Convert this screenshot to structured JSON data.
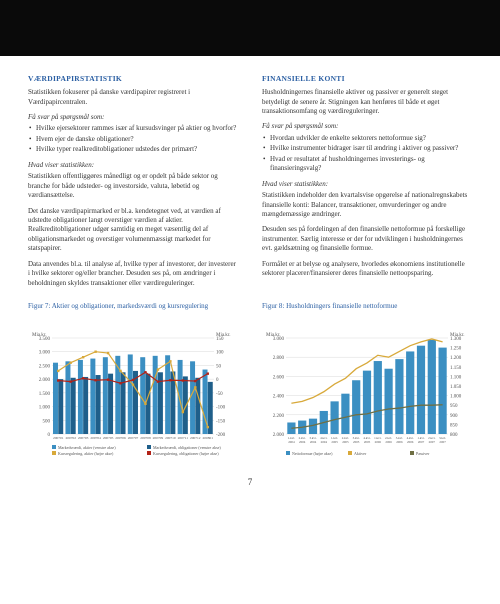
{
  "left": {
    "title": "VÆRDIPAPIRSTATISTIK",
    "intro": "Statistikken fokuserer på danske værdipapirer registreret i Værdipapircentralen.",
    "leadQ": "Få svar på spørgsmål som:",
    "bullets": [
      "Hvilke ejersektorer rammes især af kursudsvinger på aktier og hvorfor?",
      "Hvem ejer de danske obligationer?",
      "Hvilke typer realkreditobligationer udstedes der primært?"
    ],
    "subH": "Hvad viser statistikken:",
    "p1": "Statistikken offentliggøres månedligt og er opdelt på både sektor og branche for både udsteder- og investorside, valuta, løbetid og værdiansættelse.",
    "p2": "Det danske værdipapirmarked er bl.a. kendetegnet ved, at værdien af udstedte obligationer langt overstiger værdien af aktier. Realkreditobligationer udgør samtidig en meget væsentlig del af obligationsmarkedet og overstiger volumenmæssigt markedet for statspapirer.",
    "p3": "Data anvendes bl.a. til analyse af, hvilke typer af investorer, der investerer i hvilke sektorer og/eller brancher. Desuden ses på, om ændringer i beholdningen skyldes transaktioner eller værdireguleringer."
  },
  "right": {
    "title": "FINANSIELLE KONTI",
    "intro": "Husholdningernes finansielle aktiver og passiver er generelt steget betydeligt de senere år. Stigningen kan henføres til både et øget transaktionsomfang og værdireguleringer.",
    "leadQ": "Få svar på spørgsmål som:",
    "bullets": [
      "Hvordan udvikler de enkelte sektorers nettoformue sig?",
      "Hvilke instrumenter bidrager især til ændring i aktiver og passiver?",
      "Hvad er resultatet af husholdningernes investerings- og finansieringsvalg?"
    ],
    "subH": "Hvad viser statistikken:",
    "p1": "Statistikken indeholder den kvartalsvise opgørelse af nationalregnskabets finansielle konti: Balancer, transaktioner, omvurderinger og andre mængdemæssige ændringer.",
    "p2": "Desuden ses på fordelingen af den finansielle nettoformue på forskellige instrumenter. Særlig interesse er der for udviklingen i husholdningernes evt. gældsætning og finansielle formue.",
    "p3": "Formålet er at belyse og analysere, hvorledes økonomiens institutionelle sektorer placerer/finansierer deres finansielle nettoopsparing."
  },
  "fig7": {
    "no": "Figur 7:",
    "title": "Aktier og obligationer, markedsværdi og kursregulering",
    "axisLeft": "Mia.kr.",
    "axisRight": "Mia.kr.",
    "yLeftMax": 3500,
    "yLeftMin": 0,
    "yLeftStep": 500,
    "yRightMax": 150,
    "yRightMin": -200,
    "yRightStep": 50,
    "categories": [
      "200701",
      "200702",
      "200703",
      "200704",
      "200705",
      "200706",
      "200707",
      "200708",
      "200709",
      "200710",
      "200711",
      "200712",
      "200801"
    ],
    "barsA": [
      2600,
      2650,
      2700,
      2750,
      2800,
      2850,
      2900,
      2800,
      2850,
      2870,
      2700,
      2650,
      2350
    ],
    "barsB": [
      2000,
      2050,
      2080,
      2150,
      2200,
      2250,
      2300,
      2200,
      2250,
      2280,
      2100,
      2050,
      1900
    ],
    "lineA": [
      30,
      60,
      80,
      100,
      95,
      30,
      -20,
      -90,
      35,
      65,
      -120,
      -30,
      -175
    ],
    "lineB": [
      -5,
      -9,
      3,
      -4,
      -2,
      -15,
      -3,
      25,
      -9,
      -4,
      -5,
      -7,
      20
    ],
    "colors": {
      "barA": "#3b8fc2",
      "barB": "#1f5f8a",
      "lineA": "#d8a93a",
      "lineB": "#b22217",
      "grid": "#cfcfcf",
      "axis": "#888888",
      "bg": "#ffffff",
      "text": "#555555"
    },
    "legend": [
      "Markedsværdi, aktier (venstre akse)",
      "Markedsværdi, obligationer (venstre akse)",
      "Kursregulering, aktier (højre akse)",
      "Kursregulering, obligationer (højre akse)"
    ]
  },
  "fig8": {
    "no": "Figur 8:",
    "title": "Husholdningers finansielle nettoformue",
    "axisLeft": "Mia.kr.",
    "axisRight": "Mia.kr.",
    "yLeftMax": 3000,
    "yLeftMin": 2000,
    "yLeftStep": 200,
    "yRightMax": 1300,
    "yRightMin": 800,
    "yRightStep": 50,
    "categories": [
      "1.kvt. 2004",
      "2.kvt. 2004",
      "3.kvt. 2004",
      "4.kvt. 2004",
      "1.kvt. 2005",
      "2.kvt. 2005",
      "3.kvt. 2005",
      "4.kvt. 2005",
      "1.kvt. 2006",
      "2.kvt. 2006",
      "3.kvt. 2006",
      "4.kvt. 2006",
      "1.kvt. 2007",
      "2.kvt. 2007",
      "3.kvt. 2007"
    ],
    "bars": [
      860,
      870,
      880,
      920,
      970,
      1010,
      1080,
      1130,
      1180,
      1140,
      1190,
      1230,
      1260,
      1290,
      1250
    ],
    "lineAktiver": [
      2320,
      2340,
      2380,
      2440,
      2520,
      2580,
      2680,
      2740,
      2820,
      2800,
      2860,
      2920,
      2960,
      2990,
      2960
    ],
    "linePassiver": [
      2060,
      2070,
      2090,
      2120,
      2150,
      2175,
      2200,
      2210,
      2240,
      2260,
      2270,
      2288,
      2300,
      2300,
      2305
    ],
    "colors": {
      "bar": "#3b8fc2",
      "lineAktiver": "#d8a93a",
      "linePassiver": "#6f6f43",
      "grid": "#cfcfcf",
      "axis": "#888888",
      "bg": "#ffffff",
      "text": "#555555"
    },
    "legend": [
      "Nettoformue (højre akse)",
      "Aktiver",
      "Passiver"
    ]
  },
  "pageNumber": "7"
}
